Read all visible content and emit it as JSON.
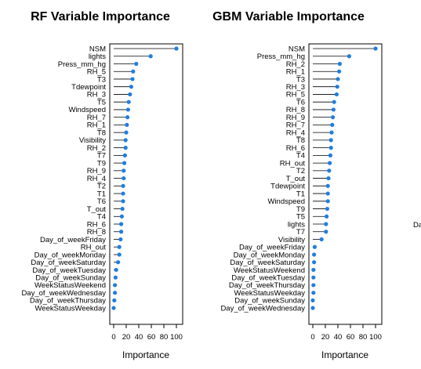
{
  "colors": {
    "point": "#1f7ee0",
    "stem": "#000000"
  },
  "chart_data": [
    {
      "type": "dot",
      "title": "RF Variable Importance",
      "xlabel": "Importance",
      "ylabel": "",
      "xlim": [
        0,
        100
      ],
      "xticks": [
        "0",
        "20",
        "40",
        "60",
        "80",
        "100"
      ],
      "categories": [
        "NSM",
        "lights",
        "Press_mm_hg",
        "RH_5",
        "T3",
        "Tdewpoint",
        "RH_3",
        "T5",
        "Windspeed",
        "RH_7",
        "RH_1",
        "T8",
        "Visibility",
        "RH_2",
        "T7",
        "T9",
        "RH_9",
        "RH_4",
        "T2",
        "T1",
        "T6",
        "T_out",
        "T4",
        "RH_6",
        "RH_8",
        "Day_of_weekFriday",
        "RH_out",
        "Day_of_weekMonday",
        "Day_of_weekSaturday",
        "Day_of_weekTuesday",
        "Day_of_weekSunday",
        "WeekStatusWeekend",
        "Day_of_weekWednesday",
        "Day_of_weekThursday",
        "WeekStatusWeekday"
      ],
      "values": [
        100,
        59,
        36,
        31,
        30,
        28,
        26,
        24,
        23,
        22,
        21,
        20,
        19,
        19,
        18,
        17,
        16,
        16,
        15,
        15,
        15,
        14,
        13,
        12,
        12,
        11,
        9,
        9,
        7,
        4,
        3,
        2,
        2,
        1,
        0
      ]
    },
    {
      "type": "dot",
      "title": "GBM Variable Importance",
      "xlabel": "Importance",
      "ylabel": "",
      "xlim": [
        0,
        100
      ],
      "xticks": [
        "0",
        "20",
        "40",
        "60",
        "80",
        "100"
      ],
      "categories": [
        "NSM",
        "Press_mm_hg",
        "RH_2",
        "RH_1",
        "T3",
        "RH_3",
        "RH_5",
        "T6",
        "RH_8",
        "RH_9",
        "RH_7",
        "RH_4",
        "T8",
        "RH_6",
        "T4",
        "RH_out",
        "T2",
        "T_out",
        "Tdewpoint",
        "T1",
        "Windspeed",
        "T9",
        "T5",
        "lights",
        "T7",
        "Visibility",
        "Day_of_weekFriday",
        "Day_of_weekMonday",
        "Day_of_weekSaturday",
        "WeekStatusWeekend",
        "Day_of_weekTuesday",
        "Day_of_weekThursday",
        "WeekStatusWeekday",
        "Day_of_weekSunday",
        "Day_of_weekWednesday"
      ],
      "values": [
        100,
        58,
        43,
        42,
        40,
        39,
        38,
        34,
        33,
        32,
        31,
        30,
        29,
        29,
        28,
        27,
        26,
        25,
        24,
        24,
        24,
        23,
        22,
        21,
        21,
        14,
        3,
        2,
        2,
        1,
        1,
        1,
        1,
        0,
        0
      ]
    }
  ],
  "cutoff_text": "Da"
}
